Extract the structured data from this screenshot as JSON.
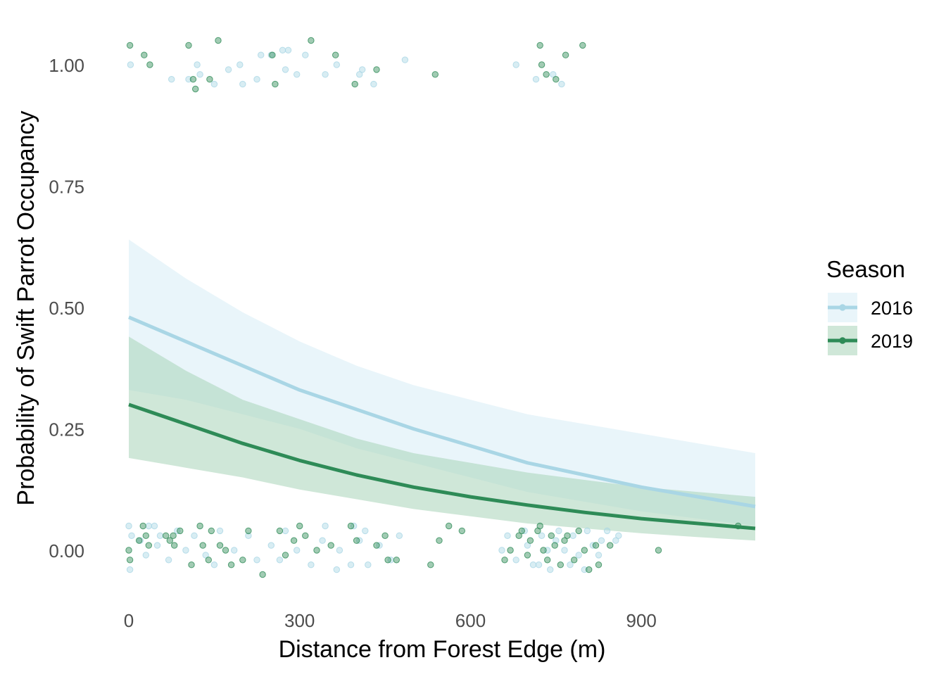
{
  "chart_data": {
    "type": "line",
    "title": "",
    "xlabel": "Distance from Forest Edge (m)",
    "ylabel": "Probability of Swift Parrot Occupancy",
    "xlim": [
      -20,
      1110
    ],
    "ylim": [
      -0.09,
      1.09
    ],
    "x_ticks": [
      0,
      300,
      600,
      900
    ],
    "x_tick_labels": [
      "0",
      "300",
      "600",
      "900"
    ],
    "y_ticks": [
      0,
      0.25,
      0.5,
      0.75,
      1
    ],
    "y_tick_labels": [
      "0.00",
      "0.25",
      "0.50",
      "0.75",
      "1.00"
    ],
    "grid": false,
    "legend": {
      "title": "Season",
      "position": "right",
      "entries": [
        "2016",
        "2019"
      ]
    },
    "series": [
      {
        "name": "2016",
        "color": "#a9d6e5",
        "band_color": "#cfe9f3",
        "x": [
          0,
          100,
          200,
          300,
          400,
          500,
          600,
          700,
          800,
          900,
          1000,
          1100
        ],
        "y": [
          0.48,
          0.43,
          0.38,
          0.33,
          0.29,
          0.25,
          0.215,
          0.18,
          0.155,
          0.13,
          0.11,
          0.09
        ],
        "lower": [
          0.33,
          0.31,
          0.28,
          0.25,
          0.21,
          0.18,
          0.15,
          0.12,
          0.1,
          0.08,
          0.065,
          0.05
        ],
        "upper": [
          0.64,
          0.56,
          0.49,
          0.43,
          0.38,
          0.34,
          0.31,
          0.28,
          0.26,
          0.24,
          0.22,
          0.2
        ],
        "points": [
          {
            "x": 3,
            "y": 1.0
          },
          {
            "x": 75,
            "y": 0.97
          },
          {
            "x": 105,
            "y": 0.97
          },
          {
            "x": 120,
            "y": 1.0
          },
          {
            "x": 125,
            "y": 0.98
          },
          {
            "x": 150,
            "y": 0.96
          },
          {
            "x": 175,
            "y": 0.99
          },
          {
            "x": 195,
            "y": 1.0
          },
          {
            "x": 200,
            "y": 0.96
          },
          {
            "x": 225,
            "y": 0.97
          },
          {
            "x": 232,
            "y": 1.02
          },
          {
            "x": 250,
            "y": 1.02
          },
          {
            "x": 270,
            "y": 1.03
          },
          {
            "x": 275,
            "y": 0.99
          },
          {
            "x": 280,
            "y": 1.03
          },
          {
            "x": 295,
            "y": 0.98
          },
          {
            "x": 310,
            "y": 1.02
          },
          {
            "x": 345,
            "y": 0.98
          },
          {
            "x": 365,
            "y": 1.0
          },
          {
            "x": 405,
            "y": 0.98
          },
          {
            "x": 410,
            "y": 0.99
          },
          {
            "x": 430,
            "y": 0.96
          },
          {
            "x": 485,
            "y": 1.01
          },
          {
            "x": 680,
            "y": 1.0
          },
          {
            "x": 715,
            "y": 0.97
          },
          {
            "x": 745,
            "y": 0.98
          },
          {
            "x": 760,
            "y": 0.96
          },
          {
            "x": 0,
            "y": 0.05
          },
          {
            "x": 2,
            "y": -0.04
          },
          {
            "x": 5,
            "y": 0.03
          },
          {
            "x": 20,
            "y": 0.02
          },
          {
            "x": 30,
            "y": -0.01
          },
          {
            "x": 35,
            "y": 0.05
          },
          {
            "x": 45,
            "y": 0.05
          },
          {
            "x": 50,
            "y": 0.01
          },
          {
            "x": 55,
            "y": 0.03
          },
          {
            "x": 70,
            "y": -0.02
          },
          {
            "x": 85,
            "y": 0.04
          },
          {
            "x": 100,
            "y": 0.0
          },
          {
            "x": 115,
            "y": 0.03
          },
          {
            "x": 135,
            "y": -0.01
          },
          {
            "x": 150,
            "y": -0.03
          },
          {
            "x": 160,
            "y": 0.04
          },
          {
            "x": 185,
            "y": 0.0
          },
          {
            "x": 210,
            "y": 0.03
          },
          {
            "x": 225,
            "y": -0.02
          },
          {
            "x": 250,
            "y": 0.01
          },
          {
            "x": 265,
            "y": -0.02
          },
          {
            "x": 275,
            "y": 0.04
          },
          {
            "x": 295,
            "y": 0.0
          },
          {
            "x": 320,
            "y": -0.03
          },
          {
            "x": 340,
            "y": 0.02
          },
          {
            "x": 345,
            "y": 0.05
          },
          {
            "x": 365,
            "y": -0.04
          },
          {
            "x": 370,
            "y": 0.0
          },
          {
            "x": 390,
            "y": -0.03
          },
          {
            "x": 395,
            "y": 0.05
          },
          {
            "x": 405,
            "y": 0.02
          },
          {
            "x": 415,
            "y": 0.04
          },
          {
            "x": 420,
            "y": -0.03
          },
          {
            "x": 440,
            "y": 0.01
          },
          {
            "x": 460,
            "y": -0.02
          },
          {
            "x": 475,
            "y": 0.03
          },
          {
            "x": 655,
            "y": 0.0
          },
          {
            "x": 665,
            "y": 0.03
          },
          {
            "x": 680,
            "y": -0.02
          },
          {
            "x": 695,
            "y": 0.04
          },
          {
            "x": 700,
            "y": 0.01
          },
          {
            "x": 710,
            "y": -0.03
          },
          {
            "x": 720,
            "y": -0.03
          },
          {
            "x": 725,
            "y": 0.03
          },
          {
            "x": 735,
            "y": 0.0
          },
          {
            "x": 740,
            "y": -0.04
          },
          {
            "x": 750,
            "y": 0.02
          },
          {
            "x": 755,
            "y": 0.04
          },
          {
            "x": 765,
            "y": 0.0
          },
          {
            "x": 775,
            "y": -0.03
          },
          {
            "x": 780,
            "y": 0.03
          },
          {
            "x": 790,
            "y": -0.01
          },
          {
            "x": 800,
            "y": -0.04
          },
          {
            "x": 805,
            "y": 0.04
          },
          {
            "x": 815,
            "y": 0.01
          },
          {
            "x": 825,
            "y": -0.01
          },
          {
            "x": 830,
            "y": 0.02
          },
          {
            "x": 840,
            "y": 0.04
          },
          {
            "x": 855,
            "y": 0.02
          },
          {
            "x": 860,
            "y": 0.03
          }
        ]
      },
      {
        "name": "2019",
        "color": "#2e8b57",
        "band_color": "#a8d4b8",
        "x": [
          0,
          100,
          200,
          300,
          400,
          500,
          600,
          700,
          800,
          900,
          1000,
          1100
        ],
        "y": [
          0.3,
          0.26,
          0.22,
          0.185,
          0.155,
          0.13,
          0.11,
          0.093,
          0.078,
          0.065,
          0.055,
          0.045
        ],
        "lower": [
          0.19,
          0.17,
          0.15,
          0.125,
          0.105,
          0.085,
          0.07,
          0.055,
          0.045,
          0.035,
          0.027,
          0.02
        ],
        "upper": [
          0.44,
          0.37,
          0.31,
          0.27,
          0.23,
          0.2,
          0.18,
          0.16,
          0.145,
          0.13,
          0.12,
          0.11
        ],
        "points": [
          {
            "x": 2,
            "y": 1.04
          },
          {
            "x": 27,
            "y": 1.02
          },
          {
            "x": 37,
            "y": 1.0
          },
          {
            "x": 105,
            "y": 1.04
          },
          {
            "x": 113,
            "y": 0.97
          },
          {
            "x": 117,
            "y": 0.95
          },
          {
            "x": 142,
            "y": 0.97
          },
          {
            "x": 157,
            "y": 1.05
          },
          {
            "x": 252,
            "y": 1.02
          },
          {
            "x": 257,
            "y": 0.96
          },
          {
            "x": 320,
            "y": 1.05
          },
          {
            "x": 363,
            "y": 1.02
          },
          {
            "x": 397,
            "y": 0.96
          },
          {
            "x": 435,
            "y": 0.99
          },
          {
            "x": 538,
            "y": 0.98
          },
          {
            "x": 722,
            "y": 1.04
          },
          {
            "x": 725,
            "y": 1.0
          },
          {
            "x": 733,
            "y": 0.98
          },
          {
            "x": 750,
            "y": 0.97
          },
          {
            "x": 767,
            "y": 1.02
          },
          {
            "x": 797,
            "y": 1.04
          },
          {
            "x": 0,
            "y": 0.0
          },
          {
            "x": 2,
            "y": -0.02
          },
          {
            "x": 18,
            "y": 0.02
          },
          {
            "x": 25,
            "y": 0.05
          },
          {
            "x": 30,
            "y": 0.03
          },
          {
            "x": 35,
            "y": 0.01
          },
          {
            "x": 65,
            "y": 0.03
          },
          {
            "x": 72,
            "y": 0.02
          },
          {
            "x": 78,
            "y": 0.03
          },
          {
            "x": 80,
            "y": 0.01
          },
          {
            "x": 90,
            "y": 0.04
          },
          {
            "x": 110,
            "y": -0.03
          },
          {
            "x": 125,
            "y": 0.05
          },
          {
            "x": 130,
            "y": 0.01
          },
          {
            "x": 140,
            "y": -0.02
          },
          {
            "x": 145,
            "y": 0.04
          },
          {
            "x": 160,
            "y": 0.01
          },
          {
            "x": 170,
            "y": 0.0
          },
          {
            "x": 180,
            "y": -0.03
          },
          {
            "x": 200,
            "y": -0.02
          },
          {
            "x": 210,
            "y": 0.04
          },
          {
            "x": 235,
            "y": -0.05
          },
          {
            "x": 265,
            "y": 0.04
          },
          {
            "x": 275,
            "y": -0.01
          },
          {
            "x": 290,
            "y": 0.02
          },
          {
            "x": 300,
            "y": 0.05
          },
          {
            "x": 310,
            "y": 0.03
          },
          {
            "x": 330,
            "y": 0.0
          },
          {
            "x": 355,
            "y": 0.01
          },
          {
            "x": 390,
            "y": 0.05
          },
          {
            "x": 400,
            "y": 0.02
          },
          {
            "x": 435,
            "y": 0.01
          },
          {
            "x": 450,
            "y": 0.03
          },
          {
            "x": 455,
            "y": -0.02
          },
          {
            "x": 470,
            "y": -0.02
          },
          {
            "x": 530,
            "y": -0.03
          },
          {
            "x": 545,
            "y": 0.02
          },
          {
            "x": 562,
            "y": 0.05
          },
          {
            "x": 585,
            "y": 0.04
          },
          {
            "x": 660,
            "y": -0.02
          },
          {
            "x": 670,
            "y": 0.0
          },
          {
            "x": 685,
            "y": 0.03
          },
          {
            "x": 690,
            "y": 0.04
          },
          {
            "x": 700,
            "y": -0.01
          },
          {
            "x": 705,
            "y": 0.02
          },
          {
            "x": 718,
            "y": 0.04
          },
          {
            "x": 722,
            "y": 0.05
          },
          {
            "x": 728,
            "y": 0.0
          },
          {
            "x": 735,
            "y": -0.02
          },
          {
            "x": 742,
            "y": 0.03
          },
          {
            "x": 748,
            "y": 0.01
          },
          {
            "x": 758,
            "y": -0.03
          },
          {
            "x": 765,
            "y": 0.02
          },
          {
            "x": 770,
            "y": 0.03
          },
          {
            "x": 782,
            "y": -0.02
          },
          {
            "x": 790,
            "y": 0.04
          },
          {
            "x": 800,
            "y": 0.0
          },
          {
            "x": 808,
            "y": -0.04
          },
          {
            "x": 820,
            "y": 0.01
          },
          {
            "x": 825,
            "y": -0.03
          },
          {
            "x": 845,
            "y": 0.01
          },
          {
            "x": 930,
            "y": 0.0
          },
          {
            "x": 1070,
            "y": 0.05
          }
        ]
      }
    ]
  }
}
